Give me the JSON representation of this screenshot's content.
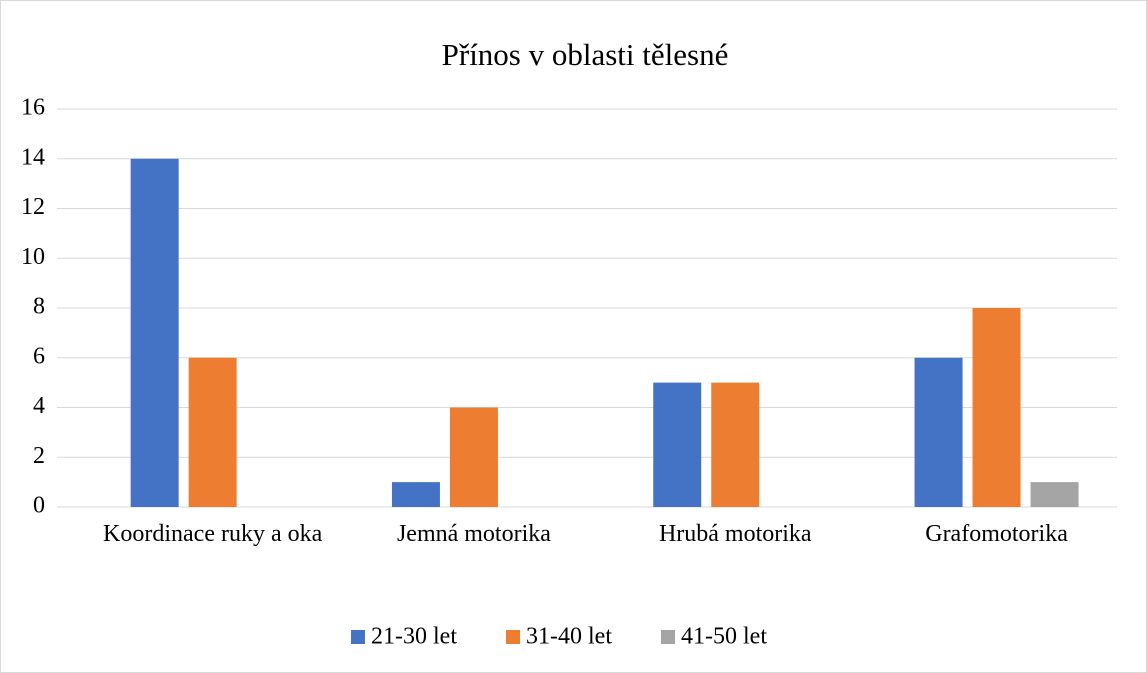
{
  "chart_data": {
    "type": "bar",
    "title": "Přínos v oblasti tělesné",
    "categories": [
      "Koordinace ruky a oka",
      "Jemná motorika",
      "Hrubá motorika",
      "Grafomotorika"
    ],
    "series": [
      {
        "name": "21-30 let",
        "color": "#4472c4",
        "values": [
          14,
          1,
          5,
          6
        ]
      },
      {
        "name": "31-40 let",
        "color": "#ed7d31",
        "values": [
          6,
          4,
          5,
          8
        ]
      },
      {
        "name": "41-50 let",
        "color": "#a5a5a5",
        "values": [
          0,
          0,
          0,
          1
        ]
      }
    ],
    "ylim": [
      0,
      16
    ],
    "yticks": [
      0,
      2,
      4,
      6,
      8,
      10,
      12,
      14,
      16
    ],
    "grid": true,
    "legend": "bottom"
  }
}
